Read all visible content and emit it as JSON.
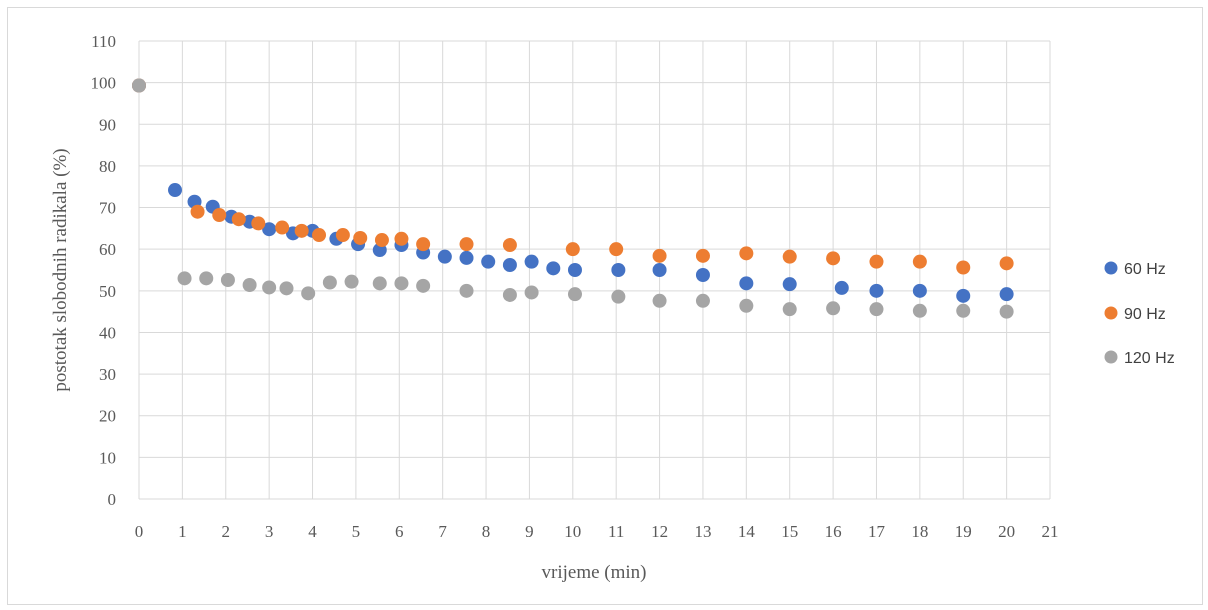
{
  "chart_data": {
    "type": "scatter",
    "title": "",
    "xlabel": "vrijeme (min)",
    "ylabel": "postotak slobodnih radikala (%)",
    "xlim": [
      0,
      21
    ],
    "ylim": [
      0,
      110
    ],
    "xticks": [
      0,
      1,
      2,
      3,
      4,
      5,
      6,
      7,
      8,
      9,
      10,
      11,
      12,
      13,
      14,
      15,
      16,
      17,
      18,
      19,
      20,
      21
    ],
    "yticks": [
      0,
      10,
      20,
      30,
      40,
      50,
      60,
      70,
      80,
      90,
      100,
      110
    ],
    "grid": true,
    "legend_position": "right",
    "series": [
      {
        "name": "60 Hz",
        "color": "#4472c4",
        "points": [
          [
            0,
            99.3
          ],
          [
            0.83,
            74.2
          ],
          [
            1.28,
            71.4
          ],
          [
            1.7,
            70.2
          ],
          [
            2.13,
            67.8
          ],
          [
            2.55,
            66.6
          ],
          [
            3.0,
            64.8
          ],
          [
            3.55,
            63.8
          ],
          [
            4.0,
            64.4
          ],
          [
            4.55,
            62.5
          ],
          [
            5.05,
            61.2
          ],
          [
            5.55,
            59.8
          ],
          [
            6.05,
            61.0
          ],
          [
            6.55,
            59.2
          ],
          [
            7.05,
            58.2
          ],
          [
            7.55,
            57.9
          ],
          [
            8.05,
            57.0
          ],
          [
            8.55,
            56.2
          ],
          [
            9.05,
            57.0
          ],
          [
            9.55,
            55.4
          ],
          [
            10.05,
            55.0
          ],
          [
            11.05,
            55.0
          ],
          [
            12.0,
            55.0
          ],
          [
            13.0,
            53.8
          ],
          [
            14.0,
            51.8
          ],
          [
            15.0,
            51.6
          ],
          [
            16.2,
            50.7
          ],
          [
            17.0,
            50.0
          ],
          [
            18.0,
            50.0
          ],
          [
            19.0,
            48.8
          ],
          [
            20.0,
            49.2
          ]
        ]
      },
      {
        "name": "90 Hz",
        "color": "#ed7d31",
        "points": [
          [
            0,
            99.3
          ],
          [
            1.35,
            69.0
          ],
          [
            1.85,
            68.2
          ],
          [
            2.3,
            67.2
          ],
          [
            2.75,
            66.2
          ],
          [
            3.3,
            65.2
          ],
          [
            3.75,
            64.4
          ],
          [
            4.15,
            63.4
          ],
          [
            4.7,
            63.4
          ],
          [
            5.1,
            62.7
          ],
          [
            5.6,
            62.2
          ],
          [
            6.05,
            62.5
          ],
          [
            6.55,
            61.2
          ],
          [
            7.55,
            61.2
          ],
          [
            8.55,
            61.0
          ],
          [
            10.0,
            60.0
          ],
          [
            11.0,
            60.0
          ],
          [
            12.0,
            58.4
          ],
          [
            13.0,
            58.4
          ],
          [
            14.0,
            59.0
          ],
          [
            15.0,
            58.2
          ],
          [
            16.0,
            57.8
          ],
          [
            17.0,
            57.0
          ],
          [
            18.0,
            57.0
          ],
          [
            19.0,
            55.6
          ],
          [
            20.0,
            56.6
          ]
        ]
      },
      {
        "name": "120 Hz",
        "color": "#a5a5a5",
        "points": [
          [
            0,
            99.3
          ],
          [
            1.05,
            53.0
          ],
          [
            1.55,
            53.0
          ],
          [
            2.05,
            52.6
          ],
          [
            2.55,
            51.4
          ],
          [
            3.0,
            50.8
          ],
          [
            3.4,
            50.6
          ],
          [
            3.9,
            49.4
          ],
          [
            4.4,
            52.0
          ],
          [
            4.9,
            52.2
          ],
          [
            5.55,
            51.8
          ],
          [
            6.05,
            51.8
          ],
          [
            6.55,
            51.2
          ],
          [
            7.55,
            50.0
          ],
          [
            8.55,
            49.0
          ],
          [
            9.05,
            49.6
          ],
          [
            10.05,
            49.2
          ],
          [
            11.05,
            48.6
          ],
          [
            12.0,
            47.6
          ],
          [
            13.0,
            47.6
          ],
          [
            14.0,
            46.4
          ],
          [
            15.0,
            45.6
          ],
          [
            16.0,
            45.8
          ],
          [
            17.0,
            45.6
          ],
          [
            18.0,
            45.2
          ],
          [
            19.0,
            45.2
          ],
          [
            20.0,
            45.0
          ]
        ]
      }
    ]
  }
}
